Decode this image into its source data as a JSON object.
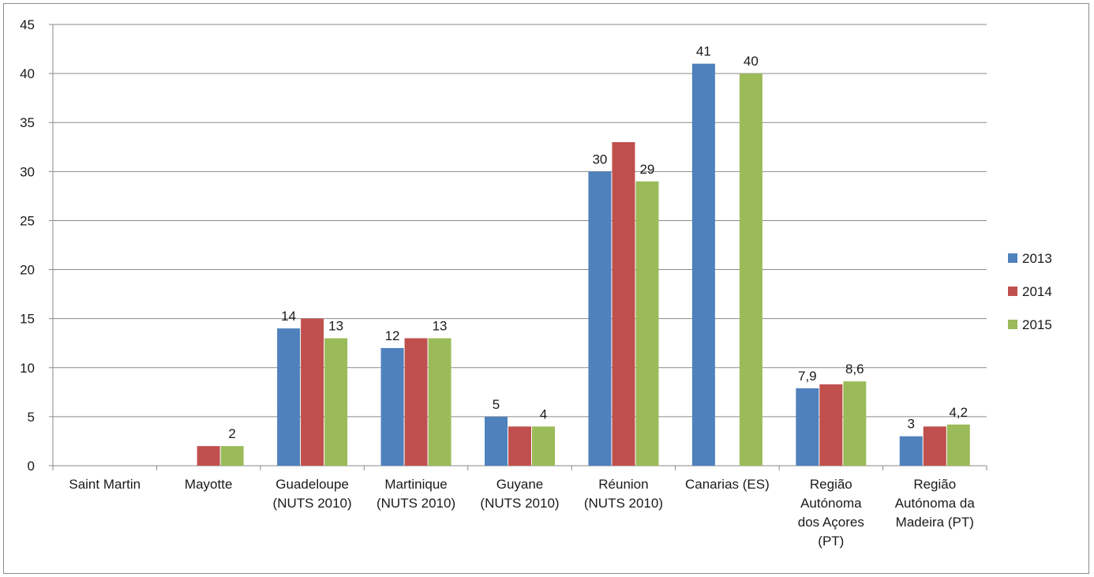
{
  "chart_data": {
    "type": "bar",
    "categories": [
      [
        "Saint Martin"
      ],
      [
        "Mayotte"
      ],
      [
        "Guadeloupe",
        "(NUTS 2010)"
      ],
      [
        "Martinique",
        "(NUTS 2010)"
      ],
      [
        "Guyane",
        "(NUTS 2010)"
      ],
      [
        "Réunion",
        "(NUTS 2010)"
      ],
      [
        "Canarias (ES)"
      ],
      [
        "Região",
        "Autónoma",
        "dos Açores",
        "(PT)"
      ],
      [
        "Região",
        "Autónoma da",
        "Madeira (PT)"
      ]
    ],
    "series": [
      {
        "name": "2013",
        "color": "#4f81bd",
        "values": [
          null,
          null,
          14,
          12,
          5,
          30,
          41,
          7.9,
          3
        ],
        "labels": [
          "",
          "",
          "14",
          "12",
          "5",
          "30",
          "41",
          "7,9",
          "3"
        ]
      },
      {
        "name": "2014",
        "color": "#c0504d",
        "values": [
          null,
          2,
          15,
          13,
          4,
          33,
          null,
          8.3,
          4
        ],
        "labels": [
          "",
          "",
          "",
          "",
          "",
          "",
          "",
          "",
          ""
        ]
      },
      {
        "name": "2015",
        "color": "#9bbb59",
        "values": [
          null,
          2,
          13,
          13,
          4,
          29,
          40,
          8.6,
          4.2
        ],
        "labels": [
          "",
          "2",
          "13",
          "13",
          "4",
          "29",
          "40",
          "8,6",
          "4,2"
        ]
      }
    ],
    "ylim": [
      0,
      45
    ],
    "yticks": [
      0,
      5,
      10,
      15,
      20,
      25,
      30,
      35,
      40,
      45
    ],
    "grid": true,
    "legend": "right",
    "title": "",
    "xlabel": "",
    "ylabel": ""
  }
}
